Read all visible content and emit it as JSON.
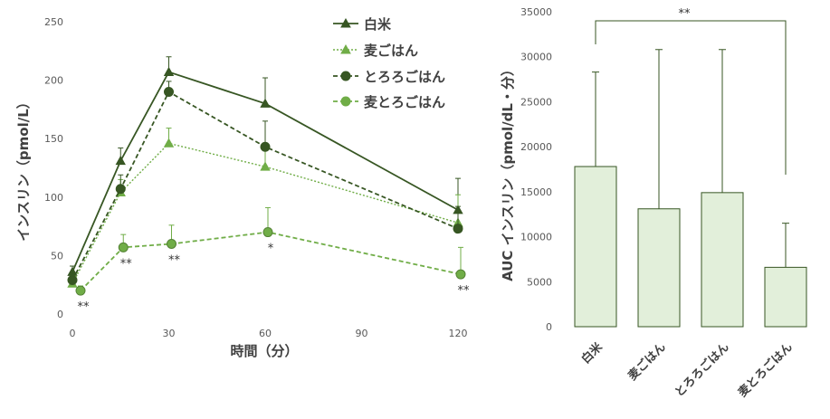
{
  "chart_data": [
    {
      "type": "line",
      "xlabel": "時間（分）",
      "ylabel": "インスリン（pmol/L）",
      "xlim": [
        0,
        120
      ],
      "ylim": [
        0,
        250
      ],
      "x_ticks": [
        "0",
        "30",
        "60",
        "90",
        "120"
      ],
      "y_ticks": [
        "0",
        "50",
        "100",
        "150",
        "200",
        "250"
      ],
      "grid": false,
      "legend_position": "top-right",
      "x": [
        0,
        15,
        30,
        60,
        120
      ],
      "series": [
        {
          "name": "白米",
          "style": "solid",
          "marker": "triangle",
          "color": "#375623",
          "values": [
            36,
            131,
            207,
            180,
            89
          ],
          "error": [
            5,
            11,
            13,
            22,
            27
          ]
        },
        {
          "name": "麦ごはん",
          "style": "dotted",
          "marker": "triangle",
          "color": "#70AD47",
          "values": [
            26,
            104,
            146,
            126,
            78
          ],
          "error": [
            5,
            11,
            13,
            14,
            24
          ]
        },
        {
          "name": "とろろごはん",
          "style": "dashed",
          "marker": "circle",
          "color": "#375623",
          "values": [
            29,
            107,
            190,
            143,
            73
          ],
          "error": [
            5,
            12,
            9,
            22,
            19
          ]
        },
        {
          "name": "麦とろごはん",
          "style": "dashed",
          "marker": "circle",
          "color": "#70AD47",
          "values": [
            20,
            57,
            60,
            70,
            34
          ],
          "error": [
            4,
            11,
            16,
            21,
            23
          ]
        }
      ],
      "annotations": [
        {
          "x": 0,
          "text": "**"
        },
        {
          "x": 15,
          "text": "**"
        },
        {
          "x": 30,
          "text": "**"
        },
        {
          "x": 60,
          "text": "*"
        },
        {
          "x": 120,
          "text": "**"
        }
      ]
    },
    {
      "type": "bar",
      "ylabel": "AUC インスリン（pmol/dL・分）",
      "ylim": [
        0,
        35000
      ],
      "y_ticks": [
        "0",
        "5000",
        "10000",
        "15000",
        "20000",
        "25000",
        "30000",
        "35000"
      ],
      "grid": false,
      "categories": [
        "白米",
        "麦ごはん",
        "とろろごはん",
        "麦とろごはん"
      ],
      "values": [
        17800,
        13100,
        14900,
        6600
      ],
      "error": [
        10500,
        17700,
        15900,
        4900
      ],
      "bar_color": "#E2EFDA",
      "bar_edge_color": "#375623",
      "significance": {
        "from": "白米",
        "to": "麦とろごはん",
        "text": "**"
      }
    }
  ]
}
